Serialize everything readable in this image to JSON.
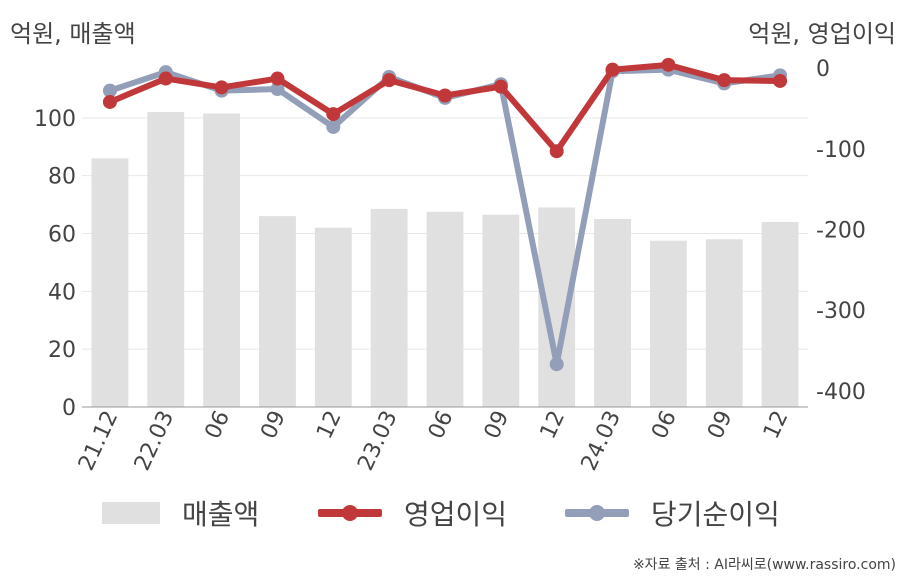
{
  "units": {
    "left": "억원, 매출액",
    "right": "억원, 영업이익"
  },
  "source": "※자료 출처 : AI라씨로(www.rassiro.com)",
  "colors": {
    "bar": "#e0e0e0",
    "operating": "#c0383a",
    "net": "#939fb8",
    "axis": "#444444",
    "grid": "#e8e8e8"
  },
  "chart_data": {
    "type": "bar",
    "categories": [
      "21.12",
      "22.03",
      "06",
      "09",
      "12",
      "23.03",
      "06",
      "09",
      "12",
      "24.03",
      "06",
      "09",
      "12"
    ],
    "ylim_left": [
      0,
      120
    ],
    "yticks_left": [
      0,
      20,
      40,
      60,
      80,
      100
    ],
    "ylim_right": [
      -420,
      10
    ],
    "yticks_right": [
      0,
      -100,
      -200,
      -300,
      -400
    ],
    "legend": {
      "position": "bottom"
    },
    "series": [
      {
        "name": "매출액",
        "type": "bar",
        "axis": "left",
        "values": [
          86,
          102,
          101.5,
          66,
          62,
          68.5,
          67.5,
          66.5,
          69,
          65,
          57.5,
          58,
          64
        ]
      },
      {
        "name": "영업이익",
        "type": "line",
        "axis": "right",
        "values": [
          -42,
          -13,
          -24,
          -13,
          -57,
          -15,
          -34,
          -23,
          -103,
          -2,
          4,
          -15,
          -16
        ]
      },
      {
        "name": "당기순이익",
        "type": "line",
        "axis": "right",
        "values": [
          -28,
          -5,
          -28,
          -26,
          -73,
          -11,
          -37,
          -20,
          -367,
          -4,
          -2,
          -19,
          -9
        ]
      }
    ]
  }
}
